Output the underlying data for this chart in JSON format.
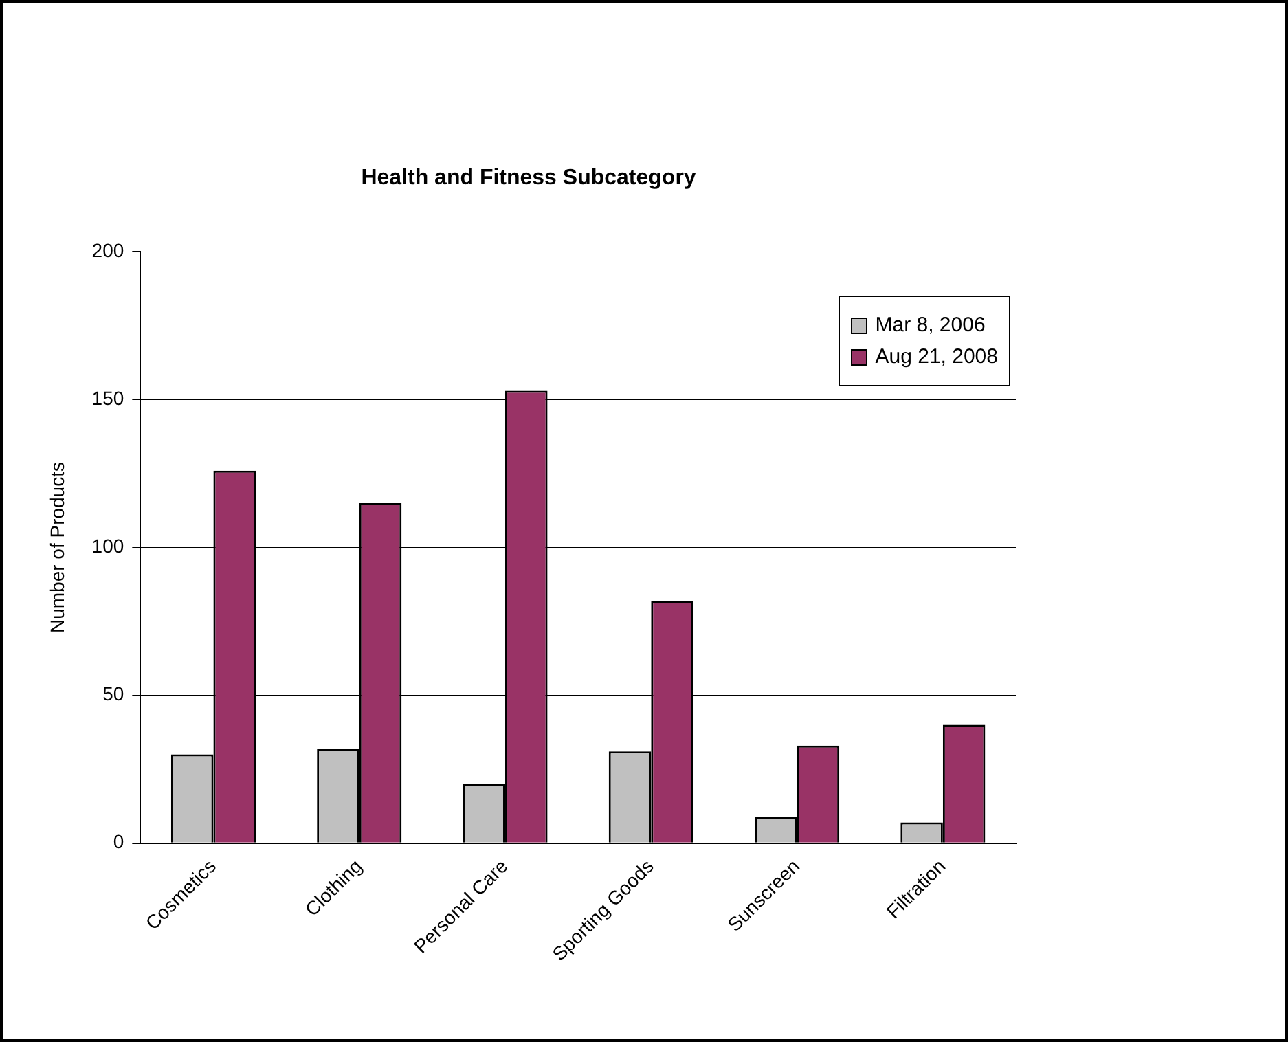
{
  "chart_data": {
    "type": "bar",
    "title": "Health and Fitness Subcategory",
    "ylabel": "Number of Products",
    "categories": [
      "Cosmetics",
      "Clothing",
      "Personal Care",
      "Sporting Goods",
      "Sunscreen",
      "Filtration"
    ],
    "series": [
      {
        "name": "Mar 8, 2006",
        "color": "#c0c0c0",
        "values": [
          30,
          32,
          20,
          31,
          9,
          7
        ]
      },
      {
        "name": "Aug 21, 2008",
        "color": "#993366",
        "values": [
          126,
          115,
          153,
          82,
          33,
          40
        ]
      }
    ],
    "ylim": [
      0,
      200
    ],
    "yticks": [
      0,
      50,
      100,
      150,
      200
    ],
    "grid": "y",
    "legend": "top right"
  }
}
